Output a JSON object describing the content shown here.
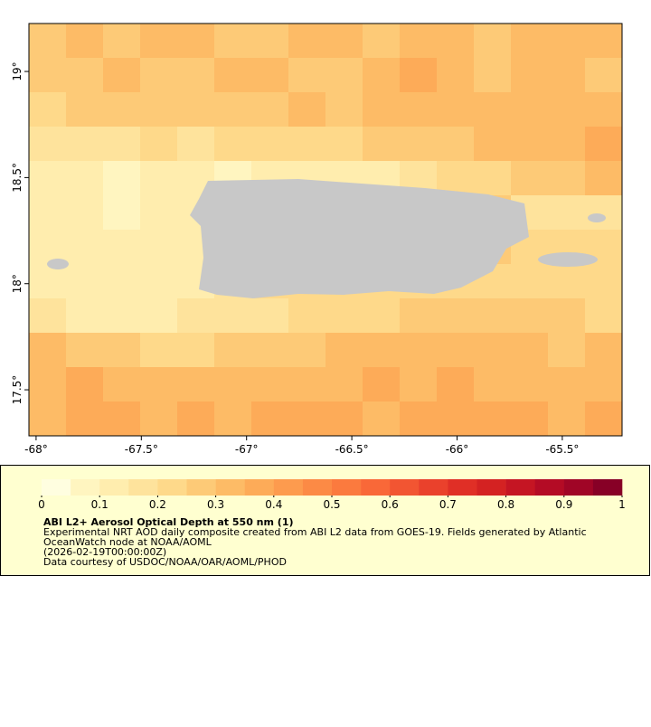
{
  "map": {
    "xlim": [
      -68.034,
      -65.216
    ],
    "ylim": [
      17.283,
      19.226
    ],
    "xticks": [
      {
        "value": -68,
        "label": "-68°"
      },
      {
        "value": -67.5,
        "label": "-67.5°"
      },
      {
        "value": -67,
        "label": "-67°"
      },
      {
        "value": -66.5,
        "label": "-66.5°"
      },
      {
        "value": -66,
        "label": "-66°"
      },
      {
        "value": -65.5,
        "label": "-65.5°"
      }
    ],
    "yticks": [
      {
        "value": 17.5,
        "label": "17.5°"
      },
      {
        "value": 18,
        "label": "18°"
      },
      {
        "value": 18.5,
        "label": "18.5°"
      },
      {
        "value": 19,
        "label": "19°"
      }
    ],
    "land_color": "#c8c8c8",
    "aod_grid": [
      [
        0.28,
        0.3,
        0.27,
        0.32,
        0.3,
        0.26,
        0.29,
        0.33,
        0.31,
        0.28,
        0.3,
        0.34,
        0.29,
        0.31,
        0.33,
        0.3
      ],
      [
        0.26,
        0.29,
        0.31,
        0.28,
        0.27,
        0.3,
        0.32,
        0.29,
        0.28,
        0.31,
        0.35,
        0.3,
        0.28,
        0.32,
        0.3,
        0.29
      ],
      [
        0.24,
        0.26,
        0.28,
        0.27,
        0.25,
        0.27,
        0.29,
        0.3,
        0.27,
        0.3,
        0.32,
        0.31,
        0.3,
        0.33,
        0.31,
        0.34
      ],
      [
        0.15,
        0.16,
        0.18,
        0.2,
        0.19,
        0.2,
        0.22,
        0.23,
        0.24,
        0.25,
        0.27,
        0.28,
        0.3,
        0.3,
        0.32,
        0.35
      ],
      [
        0.11,
        0.1,
        0.09,
        0.1,
        0.1,
        0.09,
        0.1,
        0.11,
        0.12,
        0.13,
        0.15,
        0.2,
        0.24,
        0.26,
        0.27,
        0.3
      ],
      [
        0.12,
        0.1,
        0.09,
        0.1,
        0.13,
        0.2,
        0.2,
        0.2,
        0.2,
        0.2,
        0.2,
        0.2,
        0.25,
        0.18,
        0.15,
        0.17
      ],
      [
        0.12,
        0.11,
        0.1,
        0.11,
        0.14,
        0.2,
        0.2,
        0.2,
        0.2,
        0.2,
        0.2,
        0.22,
        0.25,
        0.22,
        0.2,
        0.2
      ],
      [
        0.13,
        0.12,
        0.11,
        0.12,
        0.14,
        0.18,
        0.2,
        0.2,
        0.2,
        0.2,
        0.2,
        0.22,
        0.24,
        0.22,
        0.21,
        0.2
      ],
      [
        0.16,
        0.14,
        0.13,
        0.14,
        0.15,
        0.16,
        0.18,
        0.2,
        0.21,
        0.24,
        0.25,
        0.27,
        0.28,
        0.26,
        0.25,
        0.24
      ],
      [
        0.3,
        0.28,
        0.25,
        0.24,
        0.24,
        0.25,
        0.27,
        0.29,
        0.3,
        0.31,
        0.32,
        0.33,
        0.31,
        0.3,
        0.29,
        0.3
      ],
      [
        0.33,
        0.35,
        0.32,
        0.3,
        0.31,
        0.33,
        0.34,
        0.32,
        0.33,
        0.35,
        0.34,
        0.36,
        0.33,
        0.32,
        0.31,
        0.34
      ],
      [
        0.34,
        0.36,
        0.38,
        0.33,
        0.35,
        0.34,
        0.37,
        0.35,
        0.36,
        0.34,
        0.35,
        0.37,
        0.36,
        0.35,
        0.33,
        0.35
      ]
    ]
  },
  "colorbar": {
    "range": [
      0,
      1
    ],
    "ticks": [
      0,
      0.1,
      0.2,
      0.3,
      0.4,
      0.5,
      0.6,
      0.7,
      0.8,
      0.9,
      1
    ],
    "colors": [
      "#fffee0",
      "#fff5c0",
      "#ffedae",
      "#fee39c",
      "#fed98a",
      "#fdca77",
      "#fdbb66",
      "#fdab58",
      "#fd9b4e",
      "#fc8a45",
      "#fb7a3e",
      "#f96838",
      "#f25532",
      "#ea412c",
      "#e02f26",
      "#d42222",
      "#c51523",
      "#b40b25",
      "#a00526",
      "#870026"
    ]
  },
  "caption": {
    "title": "ABI L2+ Aerosol Optical Depth at 550 nm (1)",
    "lines": [
      "Experimental NRT AOD daily composite created from ABI L2 data from GOES-19. Fields generated by Atlantic",
      "OceanWatch node at NOAA/AOML",
      "(2026-02-19T00:00:00Z)",
      "Data courtesy of USDOC/NOAA/OAR/AOML/PHOD"
    ]
  }
}
